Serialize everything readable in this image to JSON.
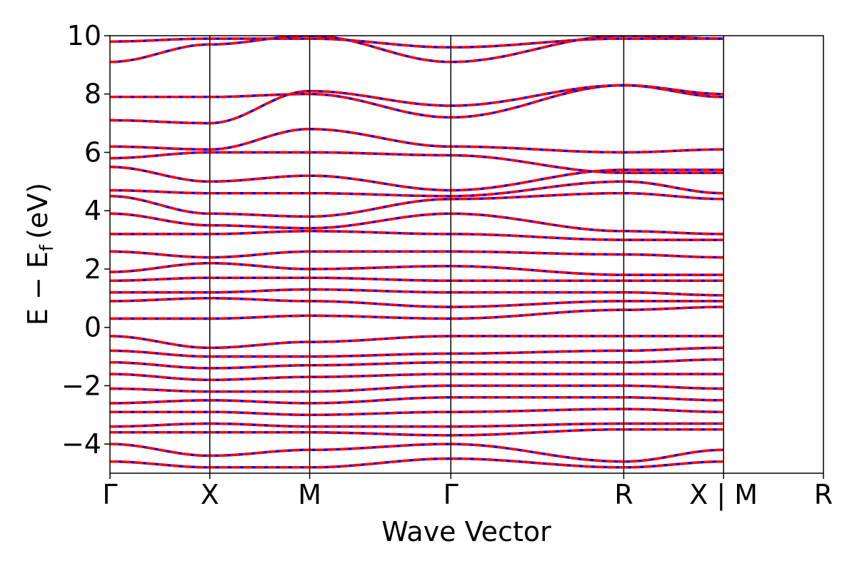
{
  "chart_data": {
    "type": "line",
    "title": "",
    "xlabel": "Wave Vector",
    "ylabel": "E − E",
    "ylabel_subscript": "f",
    "ylabel_unit": "(eV)",
    "ylim": [
      -5,
      10
    ],
    "yticks": [
      -4,
      -2,
      0,
      2,
      4,
      6,
      8,
      10
    ],
    "ytick_labels": [
      "−4",
      "−2",
      "0",
      "2",
      "4",
      "6",
      "8",
      "10"
    ],
    "kpoint_labels": [
      "Γ",
      "X",
      "M",
      "Γ",
      "R",
      "X | M",
      "R"
    ],
    "kpoint_positions": [
      0.0,
      1.0,
      2.0,
      3.414,
      5.146,
      6.146,
      7.146
    ],
    "grid": false,
    "legend": "none",
    "series": [
      {
        "values_note": "",
        "color": "#0000ff",
        "style": "solid"
      },
      {
        "values_note": "",
        "color": "#ff0000",
        "style": "dashed"
      }
    ],
    "bands": [
      [
        9.8,
        9.9,
        9.9,
        9.6,
        9.9,
        9.9
      ],
      [
        9.1,
        9.7,
        10.0,
        9.1,
        10.0,
        9.9
      ],
      [
        7.9,
        7.9,
        8.0,
        7.2,
        8.3,
        7.9
      ],
      [
        7.1,
        7.0,
        8.1,
        7.6,
        8.3,
        8.0
      ],
      [
        6.2,
        6.1,
        6.8,
        6.2,
        6.0,
        6.1
      ],
      [
        5.8,
        6.0,
        6.0,
        5.9,
        5.3,
        5.3
      ],
      [
        5.5,
        5.0,
        5.2,
        4.7,
        5.4,
        5.4
      ],
      [
        4.7,
        4.6,
        4.6,
        4.5,
        5.0,
        4.6
      ],
      [
        4.5,
        3.9,
        3.8,
        4.4,
        4.6,
        4.4
      ],
      [
        3.9,
        3.5,
        3.4,
        3.9,
        3.3,
        3.2
      ],
      [
        3.2,
        3.2,
        3.3,
        3.2,
        3.0,
        3.0
      ],
      [
        2.6,
        2.4,
        2.6,
        2.6,
        2.5,
        2.4
      ],
      [
        1.9,
        2.2,
        2.0,
        2.1,
        1.8,
        1.8
      ],
      [
        1.6,
        1.7,
        1.7,
        1.6,
        1.6,
        1.6
      ],
      [
        1.2,
        1.2,
        1.3,
        1.2,
        1.2,
        1.1
      ],
      [
        0.9,
        1.0,
        0.9,
        0.7,
        0.9,
        0.9
      ],
      [
        0.3,
        0.3,
        0.4,
        0.3,
        0.6,
        0.7
      ],
      [
        -0.3,
        -0.7,
        -0.5,
        -0.3,
        -0.3,
        -0.3
      ],
      [
        -0.8,
        -1.0,
        -1.0,
        -0.9,
        -0.8,
        -0.7
      ],
      [
        -1.2,
        -1.4,
        -1.3,
        -1.2,
        -1.2,
        -1.1
      ],
      [
        -1.6,
        -1.8,
        -1.7,
        -1.6,
        -1.6,
        -1.6
      ],
      [
        -2.1,
        -2.2,
        -2.2,
        -2.0,
        -2.0,
        -2.1
      ],
      [
        -2.6,
        -2.5,
        -2.6,
        -2.4,
        -2.4,
        -2.5
      ],
      [
        -2.9,
        -2.9,
        -3.0,
        -2.9,
        -2.8,
        -2.9
      ],
      [
        -3.4,
        -3.3,
        -3.4,
        -3.4,
        -3.3,
        -3.3
      ],
      [
        -3.6,
        -3.6,
        -3.6,
        -3.7,
        -3.5,
        -3.5
      ],
      [
        -4.0,
        -4.4,
        -4.2,
        -4.0,
        -4.6,
        -4.2
      ],
      [
        -4.6,
        -4.8,
        -4.8,
        -4.5,
        -4.8,
        -4.6
      ]
    ]
  }
}
